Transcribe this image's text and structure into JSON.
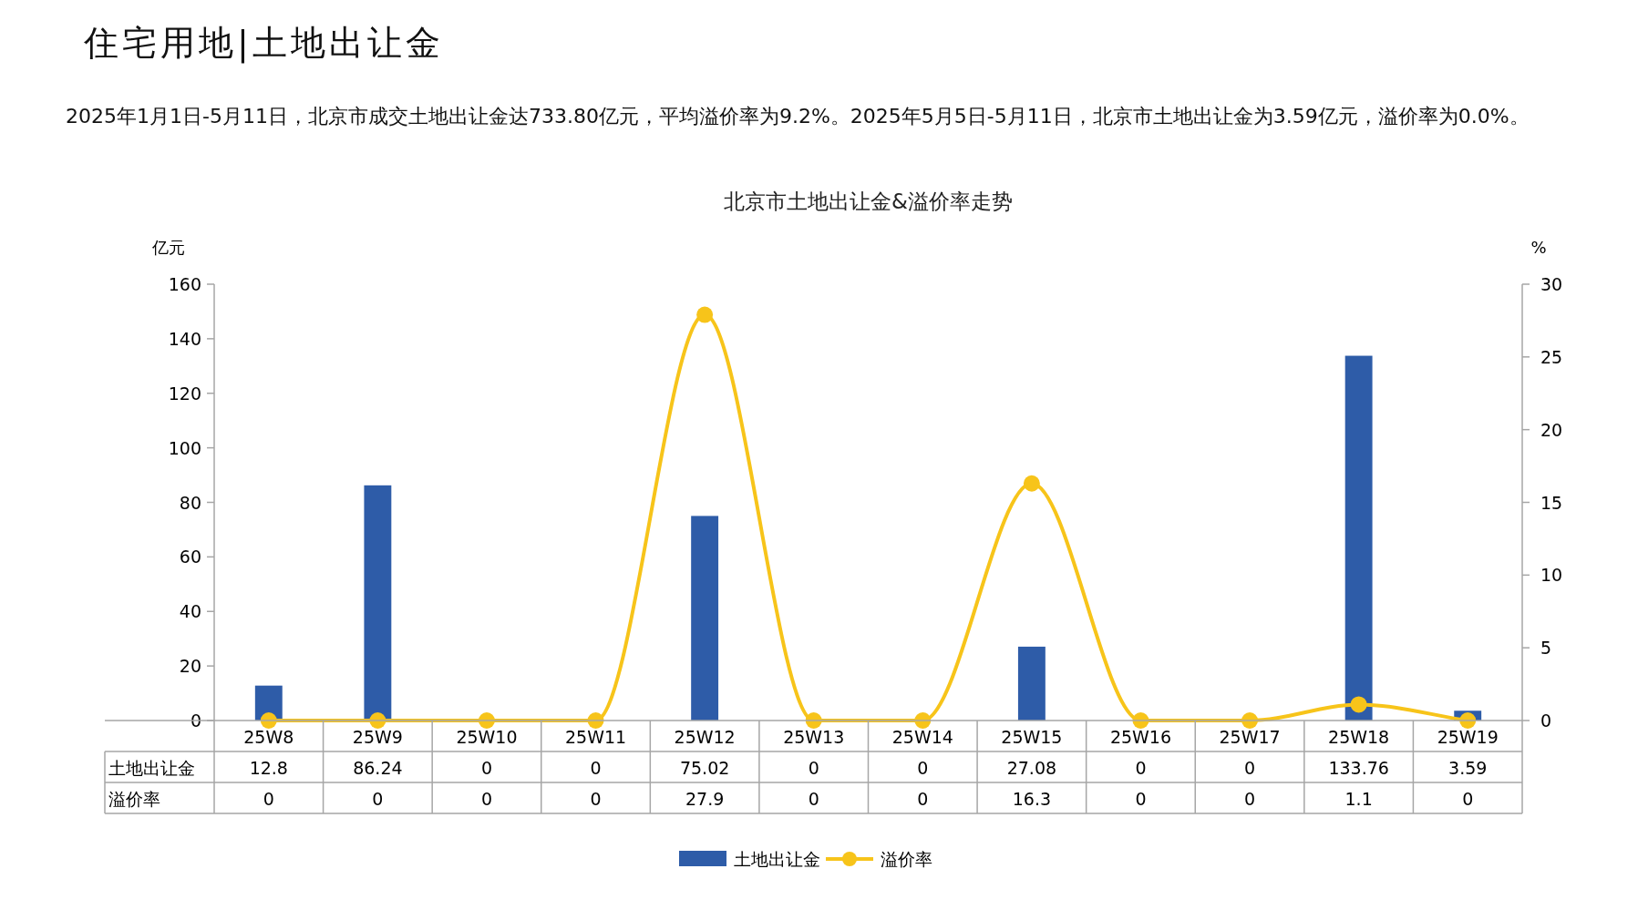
{
  "chart_data": {
    "type": "bar",
    "title": "住宅用地|土地出让金",
    "subtitle": "北京市土地出让金&溢价率走势",
    "annotations": [
      "2025年1月1日-5月11日，北京市成交土地出让金达733.80亿元，平均溢价率为9.2%。2025年5月5日-5月11日，北京市土地出让金为3.59亿元，溢价率为0.0%。"
    ],
    "ylabel": "亿元",
    "y2label": "%",
    "categories": [
      "25W8",
      "25W9",
      "25W10",
      "25W11",
      "25W12",
      "25W13",
      "25W14",
      "25W15",
      "25W16",
      "25W17",
      "25W18",
      "25W19"
    ],
    "series": [
      {
        "name": "土地出让金",
        "color": "#2e5ca8",
        "values": [
          12.8,
          86.24,
          0,
          0,
          75.02,
          0,
          0,
          27.08,
          0,
          0,
          133.76,
          3.59
        ]
      },
      {
        "name": "溢价率",
        "type": "line",
        "axis": "y2",
        "color": "#f7c41a",
        "values": [
          0,
          0,
          0,
          0,
          27.9,
          0,
          0,
          16.3,
          0,
          0,
          1.1,
          0
        ]
      }
    ],
    "ylim": [
      0,
      160
    ],
    "yticks": [
      0,
      20,
      40,
      60,
      80,
      100,
      120,
      140,
      160
    ],
    "y2lim": [
      0,
      30
    ],
    "y2ticks": [
      0,
      5,
      10,
      15,
      20,
      25,
      30
    ],
    "data_labels": true,
    "legend": "bottom",
    "marker": "circle",
    "line_style": "solid",
    "grid": false
  }
}
